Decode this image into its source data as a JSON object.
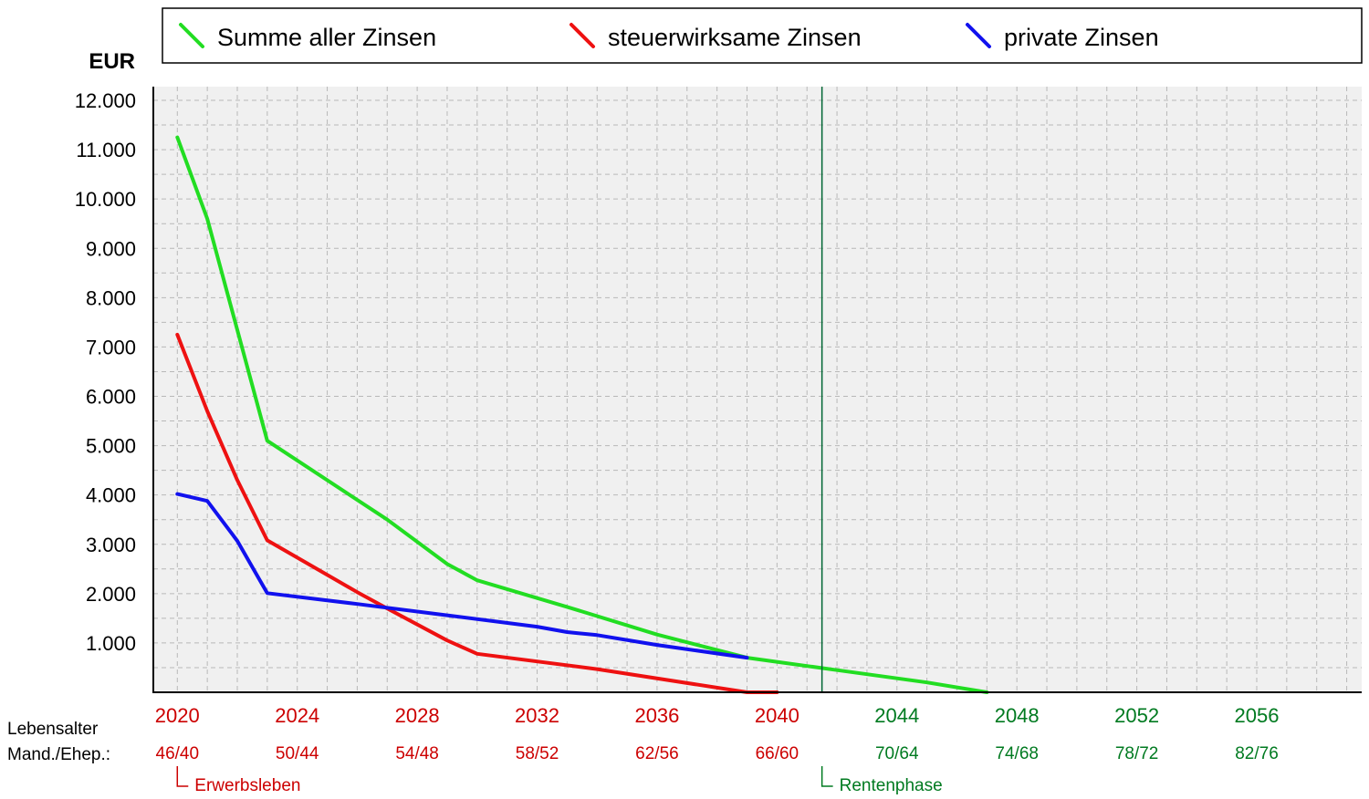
{
  "colors": {
    "work_phase": "#cc0000",
    "retirement_phase": "#007a20",
    "retirement_marker": "#006633",
    "plot_bg": "#f0f0f0"
  },
  "legend": [
    {
      "label": "Summe aller Zinsen",
      "color": "#22dd22"
    },
    {
      "label": "steuerwirksame Zinsen",
      "color": "#ee1111"
    },
    {
      "label": "private Zinsen",
      "color": "#1111ee"
    }
  ],
  "labels": {
    "age_row_1": "Lebensalter",
    "age_row_2": "Mand./Ehep.:",
    "work_phase": "Erwerbsleben",
    "retirement_phase": "Rentenphase"
  },
  "chart_data": {
    "type": "line",
    "title": "",
    "xlabel": "",
    "ylabel": "EUR",
    "xlim": [
      2019.2,
      2059.5
    ],
    "ylim": [
      0,
      12000
    ],
    "grid": true,
    "legend_position": "top",
    "yticks": [
      {
        "value": 1000,
        "label": "1.000"
      },
      {
        "value": 2000,
        "label": "2.000"
      },
      {
        "value": 3000,
        "label": "3.000"
      },
      {
        "value": 4000,
        "label": "4.000"
      },
      {
        "value": 5000,
        "label": "5.000"
      },
      {
        "value": 6000,
        "label": "6.000"
      },
      {
        "value": 7000,
        "label": "7.000"
      },
      {
        "value": 8000,
        "label": "8.000"
      },
      {
        "value": 9000,
        "label": "9.000"
      },
      {
        "value": 10000,
        "label": "10.000"
      },
      {
        "value": 11000,
        "label": "11.000"
      },
      {
        "value": 12000,
        "label": "12.000"
      }
    ],
    "xticks": [
      {
        "year": 2020,
        "label": "2020",
        "age": "46/40",
        "phase": "work"
      },
      {
        "year": 2024,
        "label": "2024",
        "age": "50/44",
        "phase": "work"
      },
      {
        "year": 2028,
        "label": "2028",
        "age": "54/48",
        "phase": "work"
      },
      {
        "year": 2032,
        "label": "2032",
        "age": "58/52",
        "phase": "work"
      },
      {
        "year": 2036,
        "label": "2036",
        "age": "62/56",
        "phase": "work"
      },
      {
        "year": 2040,
        "label": "2040",
        "age": "66/60",
        "phase": "work"
      },
      {
        "year": 2044,
        "label": "2044",
        "age": "70/64",
        "phase": "retirement"
      },
      {
        "year": 2048,
        "label": "2048",
        "age": "74/68",
        "phase": "retirement"
      },
      {
        "year": 2052,
        "label": "2052",
        "age": "78/72",
        "phase": "retirement"
      },
      {
        "year": 2056,
        "label": "2056",
        "age": "82/76",
        "phase": "retirement"
      }
    ],
    "work_phase_start": 2020,
    "retirement_start": 2041.5,
    "series": [
      {
        "name": "Summe aller Zinsen",
        "color": "#22dd22",
        "x": [
          2020,
          2021,
          2023,
          2027,
          2029,
          2030,
          2033,
          2036,
          2039,
          2042,
          2045,
          2047
        ],
        "y": [
          11250,
          9600,
          5100,
          3500,
          2600,
          2270,
          1730,
          1170,
          700,
          450,
          200,
          0
        ]
      },
      {
        "name": "steuerwirksame Zinsen",
        "color": "#ee1111",
        "x": [
          2020,
          2021,
          2022,
          2023,
          2026,
          2027,
          2029,
          2030,
          2034,
          2039,
          2040
        ],
        "y": [
          7250,
          5700,
          4300,
          3080,
          2030,
          1700,
          1050,
          780,
          470,
          0,
          0
        ]
      },
      {
        "name": "private Zinsen",
        "color": "#1111ee",
        "x": [
          2020,
          2021,
          2022,
          2023,
          2026,
          2029,
          2032,
          2033,
          2034,
          2036,
          2039
        ],
        "y": [
          4020,
          3880,
          3070,
          2010,
          1790,
          1560,
          1330,
          1220,
          1160,
          960,
          700
        ]
      }
    ]
  }
}
